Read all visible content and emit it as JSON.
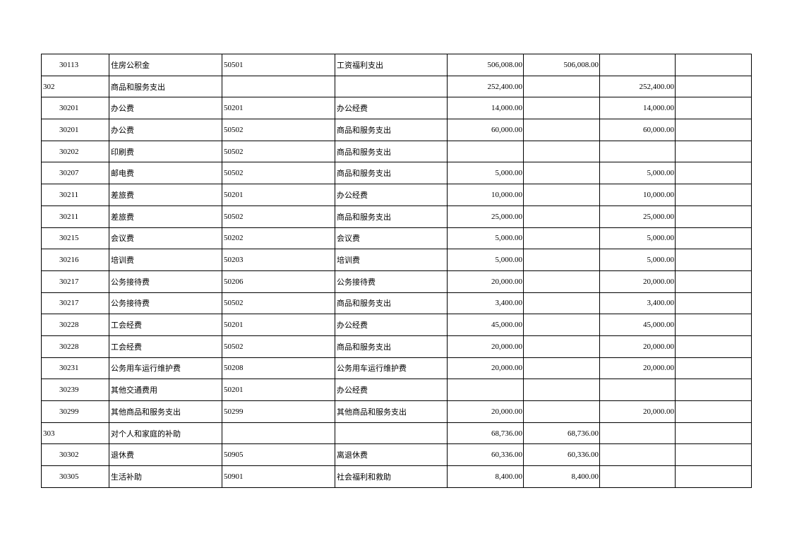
{
  "table": {
    "rows": [
      [
        "30113",
        "住房公积金",
        "50501",
        "工资福利支出",
        "506,008.00",
        "506,008.00",
        "",
        ""
      ],
      [
        "302",
        "商品和服务支出",
        "",
        "",
        "252,400.00",
        "",
        "252,400.00",
        ""
      ],
      [
        "30201",
        "办公费",
        "50201",
        "办公经费",
        "14,000.00",
        "",
        "14,000.00",
        ""
      ],
      [
        "30201",
        "办公费",
        "50502",
        "商品和服务支出",
        "60,000.00",
        "",
        "60,000.00",
        ""
      ],
      [
        "30202",
        "印刷费",
        "50502",
        "商品和服务支出",
        "",
        "",
        "",
        ""
      ],
      [
        "30207",
        "邮电费",
        "50502",
        "商品和服务支出",
        "5,000.00",
        "",
        "5,000.00",
        ""
      ],
      [
        "30211",
        "差旅费",
        "50201",
        "办公经费",
        "10,000.00",
        "",
        "10,000.00",
        ""
      ],
      [
        "30211",
        "差旅费",
        "50502",
        "商品和服务支出",
        "25,000.00",
        "",
        "25,000.00",
        ""
      ],
      [
        "30215",
        "会议费",
        "50202",
        "会议费",
        "5,000.00",
        "",
        "5,000.00",
        ""
      ],
      [
        "30216",
        "培训费",
        "50203",
        "培训费",
        "5,000.00",
        "",
        "5,000.00",
        ""
      ],
      [
        "30217",
        "公务接待费",
        "50206",
        "公务接待费",
        "20,000.00",
        "",
        "20,000.00",
        ""
      ],
      [
        "30217",
        "公务接待费",
        "50502",
        "商品和服务支出",
        "3,400.00",
        "",
        "3,400.00",
        ""
      ],
      [
        "30228",
        "工会经费",
        "50201",
        "办公经费",
        "45,000.00",
        "",
        "45,000.00",
        ""
      ],
      [
        "30228",
        "工会经费",
        "50502",
        "商品和服务支出",
        "20,000.00",
        "",
        "20,000.00",
        ""
      ],
      [
        "30231",
        "公务用车运行维护费",
        "50208",
        "公务用车运行维护费",
        "20,000.00",
        "",
        "20,000.00",
        ""
      ],
      [
        "30239",
        "其他交通费用",
        "50201",
        "办公经费",
        "",
        "",
        "",
        ""
      ],
      [
        "30299",
        "其他商品和服务支出",
        "50299",
        "其他商品和服务支出",
        "20,000.00",
        "",
        "20,000.00",
        ""
      ],
      [
        "303",
        "对个人和家庭的补助",
        "",
        "",
        "68,736.00",
        "68,736.00",
        "",
        ""
      ],
      [
        "30302",
        "退休费",
        "50905",
        "离退休费",
        "60,336.00",
        "60,336.00",
        "",
        ""
      ],
      [
        "30305",
        "生活补助",
        "50901",
        "社会福利和救助",
        "8,400.00",
        "8,400.00",
        "",
        ""
      ]
    ]
  }
}
